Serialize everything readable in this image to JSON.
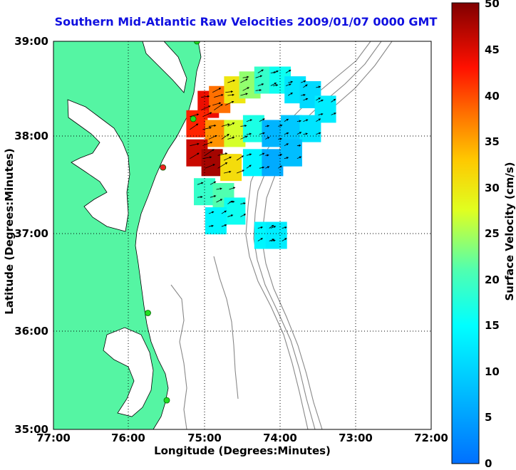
{
  "title": "Southern Mid-Atlantic Raw Velocities 2009/01/07 0000 GMT",
  "map": {
    "x_axis": {
      "label": "Longitude (Degrees:Minutes)",
      "ticks": [
        "77:00",
        "76:00",
        "75:00",
        "74:00",
        "73:00",
        "72:00"
      ]
    },
    "y_axis": {
      "label": "Latitude (Degrees:Minutes)",
      "ticks": [
        "39:00",
        "38:00",
        "37:00",
        "36:00",
        "35:00"
      ]
    },
    "colorbar": {
      "label": "Surface Velocity (cm/s)",
      "ticks": [
        "50",
        "45",
        "40",
        "35",
        "30",
        "25",
        "20",
        "15",
        "10",
        "5",
        "0"
      ],
      "min": 0,
      "max": 50
    },
    "colors": {
      "land": "#55f5a3",
      "title": "#1010e0",
      "station": "#22dd22",
      "station_alt": "#ee2222"
    },
    "velocity_field_points": [
      {
        "lon": -74.95,
        "lat": 38.35,
        "speed": 44
      },
      {
        "lon": -74.8,
        "lat": 38.4,
        "speed": 38
      },
      {
        "lon": -74.6,
        "lat": 38.5,
        "speed": 30
      },
      {
        "lon": -74.4,
        "lat": 38.55,
        "speed": 24
      },
      {
        "lon": -74.2,
        "lat": 38.6,
        "speed": 19
      },
      {
        "lon": -74.0,
        "lat": 38.6,
        "speed": 16
      },
      {
        "lon": -73.8,
        "lat": 38.5,
        "speed": 12
      },
      {
        "lon": -73.6,
        "lat": 38.45,
        "speed": 11
      },
      {
        "lon": -73.4,
        "lat": 38.3,
        "speed": 13
      },
      {
        "lon": -75.1,
        "lat": 38.15,
        "speed": 42
      },
      {
        "lon": -74.85,
        "lat": 38.05,
        "speed": 36
      },
      {
        "lon": -74.6,
        "lat": 38.05,
        "speed": 27
      },
      {
        "lon": -74.35,
        "lat": 38.1,
        "speed": 17
      },
      {
        "lon": -74.1,
        "lat": 38.05,
        "speed": 7
      },
      {
        "lon": -73.85,
        "lat": 38.1,
        "speed": 9
      },
      {
        "lon": -73.6,
        "lat": 38.1,
        "speed": 12
      },
      {
        "lon": -75.1,
        "lat": 37.85,
        "speed": 46
      },
      {
        "lon": -74.9,
        "lat": 37.75,
        "speed": 48
      },
      {
        "lon": -74.65,
        "lat": 37.7,
        "speed": 31
      },
      {
        "lon": -74.35,
        "lat": 37.75,
        "speed": 14
      },
      {
        "lon": -74.1,
        "lat": 37.75,
        "speed": 6
      },
      {
        "lon": -73.85,
        "lat": 37.85,
        "speed": 8
      },
      {
        "lon": -75.0,
        "lat": 37.45,
        "speed": 19
      },
      {
        "lon": -74.75,
        "lat": 37.4,
        "speed": 21
      },
      {
        "lon": -74.6,
        "lat": 37.25,
        "speed": 16
      },
      {
        "lon": -74.85,
        "lat": 37.15,
        "speed": 14
      },
      {
        "lon": -74.2,
        "lat": 37.0,
        "speed": 14
      },
      {
        "lon": -74.05,
        "lat": 37.0,
        "speed": 13
      }
    ],
    "stations": [
      {
        "lon": -75.1,
        "lat": 39.0,
        "type": "green"
      },
      {
        "lon": -75.15,
        "lat": 38.2,
        "type": "green"
      },
      {
        "lon": -75.55,
        "lat": 37.7,
        "type": "red"
      },
      {
        "lon": -75.75,
        "lat": 36.2,
        "type": "green"
      },
      {
        "lon": -75.5,
        "lat": 35.3,
        "type": "green"
      }
    ]
  }
}
